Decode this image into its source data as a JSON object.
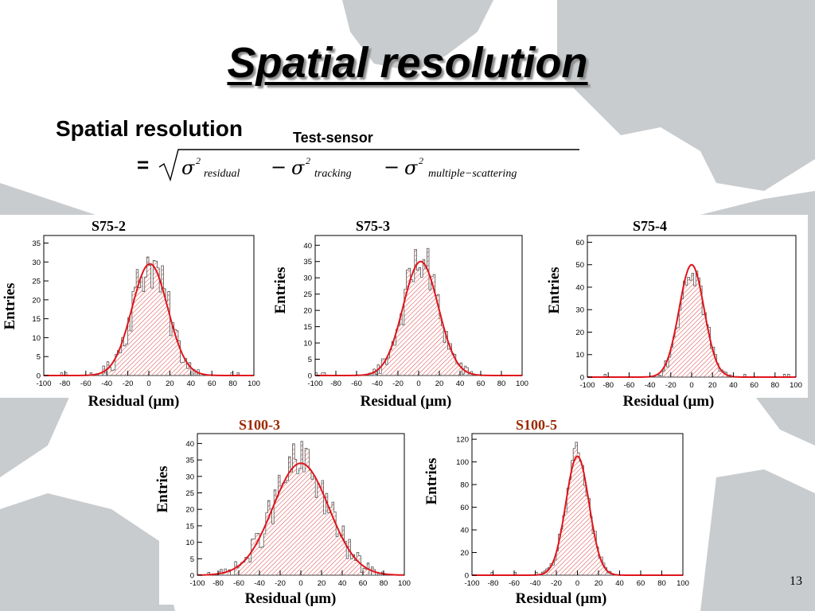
{
  "slide": {
    "title": "Spatial resolution",
    "formula_label": "Spatial resolution",
    "formula_subscript": "Test-sensor",
    "formula_equals": "=",
    "formula_terms": [
      "residual",
      "tracking",
      "multiple−scattering"
    ],
    "page_number": "13"
  },
  "colors": {
    "fit": "#e0151b",
    "hist": "#555555",
    "hatch": "#e05a5a",
    "map": "#c9ccce",
    "label_red": "#9b2a00"
  },
  "chart_data": [
    {
      "type": "area",
      "title": "S75-2",
      "xlabel": "Residual (μm)",
      "ylabel": "Entries",
      "xlim": [
        -100,
        100
      ],
      "ylim": [
        0,
        37
      ],
      "xticks": [
        -100,
        -80,
        -60,
        -40,
        -20,
        0,
        20,
        40,
        60,
        80,
        100
      ],
      "yticks": [
        0,
        5,
        10,
        15,
        20,
        25,
        30,
        35
      ],
      "fit": {
        "mean": 1,
        "sigma": 17,
        "amplitude": 29.5
      }
    },
    {
      "type": "area",
      "title": "S75-3",
      "xlabel": "Residual (μm)",
      "ylabel": "Entries",
      "xlim": [
        -100,
        100
      ],
      "ylim": [
        0,
        43
      ],
      "xticks": [
        -100,
        -80,
        -60,
        -40,
        -20,
        0,
        20,
        40,
        60,
        80,
        100
      ],
      "yticks": [
        0,
        5,
        10,
        15,
        20,
        25,
        30,
        35,
        40
      ],
      "fit": {
        "mean": 2,
        "sigma": 17,
        "amplitude": 35
      }
    },
    {
      "type": "area",
      "title": "S75-4",
      "xlabel": "Residual (μm)",
      "ylabel": "Entries",
      "xlim": [
        -100,
        100
      ],
      "ylim": [
        0,
        63
      ],
      "xticks": [
        -100,
        -80,
        -60,
        -40,
        -20,
        0,
        20,
        40,
        60,
        80,
        100
      ],
      "yticks": [
        0,
        10,
        20,
        30,
        40,
        50,
        60
      ],
      "fit": {
        "mean": 0,
        "sigma": 12,
        "amplitude": 50
      }
    },
    {
      "type": "area",
      "title": "S100-3",
      "xlabel": "Residual (μm)",
      "ylabel": "Entries",
      "xlim": [
        -100,
        100
      ],
      "ylim": [
        0,
        43
      ],
      "xticks": [
        -100,
        -80,
        -60,
        -40,
        -20,
        0,
        20,
        40,
        60,
        80,
        100
      ],
      "yticks": [
        0,
        5,
        10,
        15,
        20,
        25,
        30,
        35,
        40
      ],
      "fit": {
        "mean": 0,
        "sigma": 27,
        "amplitude": 34
      }
    },
    {
      "type": "area",
      "title": "S100-5",
      "xlabel": "Residual (μm)",
      "ylabel": "Entries",
      "xlim": [
        -100,
        100
      ],
      "ylim": [
        0,
        125
      ],
      "xticks": [
        -100,
        -80,
        -60,
        -40,
        -20,
        0,
        20,
        40,
        60,
        80,
        100
      ],
      "yticks": [
        0,
        20,
        40,
        60,
        80,
        100,
        120
      ],
      "fit": {
        "mean": 0,
        "sigma": 11,
        "amplitude": 105
      }
    }
  ]
}
